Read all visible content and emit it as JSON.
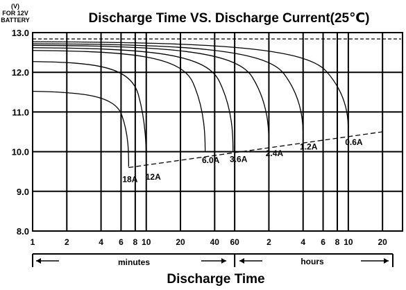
{
  "chart_data": {
    "type": "line",
    "title": "Discharge Time VS. Discharge Current(25℃)",
    "ylabel_unit": "(V)",
    "ylabel_line1": "FOR 12V",
    "ylabel_line2": "BATTERY",
    "xlabel": "Discharge Time",
    "ylim": [
      8.0,
      13.0
    ],
    "yticks": [
      "8.0",
      "9.0",
      "10.0",
      "11.0",
      "12.0",
      "13.0"
    ],
    "x_scale": "log",
    "x_range_minutes": [
      1,
      1800
    ],
    "xticks": [
      {
        "label": "1",
        "minutes": 1
      },
      {
        "label": "2",
        "minutes": 2
      },
      {
        "label": "4",
        "minutes": 4
      },
      {
        "label": "6",
        "minutes": 6
      },
      {
        "label": "8",
        "minutes": 8
      },
      {
        "label": "10",
        "minutes": 10
      },
      {
        "label": "20",
        "minutes": 20
      },
      {
        "label": "40",
        "minutes": 40
      },
      {
        "label": "60",
        "minutes": 60
      },
      {
        "label": "2",
        "minutes": 120
      },
      {
        "label": "4",
        "minutes": 240
      },
      {
        "label": "6",
        "minutes": 360
      },
      {
        "label": "8",
        "minutes": 480
      },
      {
        "label": "10",
        "minutes": 600
      },
      {
        "label": "20",
        "minutes": 1200
      }
    ],
    "unit_minutes": "minutes",
    "unit_hours": "hours",
    "grid": true,
    "series": [
      {
        "name": "18A",
        "end_minutes": 7,
        "start_v": 11.52,
        "end_v": 9.62
      },
      {
        "name": "12A",
        "end_minutes": 10,
        "start_v": 12.27,
        "end_v": 9.68
      },
      {
        "name": "6.0A",
        "end_minutes": 33,
        "start_v": 12.55,
        "end_v": 9.99
      },
      {
        "name": "3.6A",
        "end_minutes": 58,
        "start_v": 12.62,
        "end_v": 10.02
      },
      {
        "name": "2.4A",
        "end_minutes": 120,
        "start_v": 12.68,
        "end_v": 10.17
      },
      {
        "name": "1.2A",
        "end_minutes": 240,
        "start_v": 12.72,
        "end_v": 10.33
      },
      {
        "name": "0.6A",
        "end_minutes": 600,
        "start_v": 12.77,
        "end_v": 10.45
      }
    ],
    "cutoff_line": [
      {
        "minutes": 7,
        "v": 9.6
      },
      {
        "minutes": 1200,
        "v": 10.5
      }
    ],
    "open_circuit_line_v": 12.84
  }
}
